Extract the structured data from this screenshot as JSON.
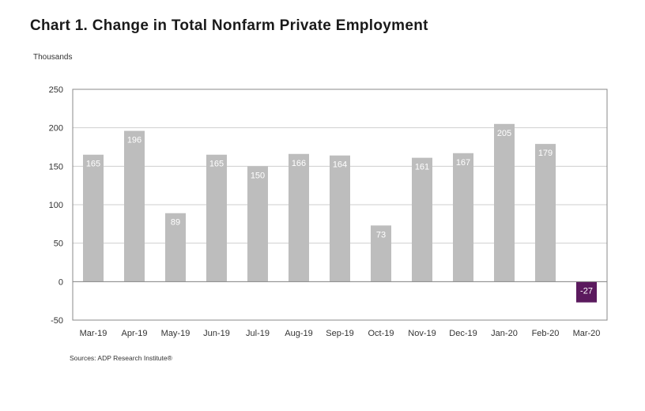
{
  "title": "Chart 1. Change in Total Nonfarm Private Employment",
  "unit_label": "Thousands",
  "source": "Sources: ADP Research Institute®",
  "chart_data": {
    "type": "bar",
    "title": "Chart 1. Change in Total Nonfarm Private Employment",
    "ylabel": "Thousands",
    "xlabel": "",
    "categories": [
      "Mar-19",
      "Apr-19",
      "May-19",
      "Jun-19",
      "Jul-19",
      "Aug-19",
      "Sep-19",
      "Oct-19",
      "Nov-19",
      "Dec-19",
      "Jan-20",
      "Feb-20",
      "Mar-20"
    ],
    "values": [
      165,
      196,
      89,
      165,
      150,
      166,
      164,
      73,
      161,
      167,
      205,
      179,
      -27
    ],
    "value_labels": [
      "165",
      "196",
      "89",
      "165",
      "150",
      "166",
      "164",
      "73",
      "161",
      "167",
      "205",
      "179",
      "-27"
    ],
    "ylim": [
      -50,
      250
    ],
    "yticks": [
      -50,
      0,
      50,
      100,
      150,
      200,
      250
    ],
    "grid": true,
    "legend": "none",
    "colors": {
      "positive": "#bdbdbd",
      "negative": "#5b1a5e",
      "grid": "#cfcfcf",
      "axis": "#888888"
    }
  }
}
